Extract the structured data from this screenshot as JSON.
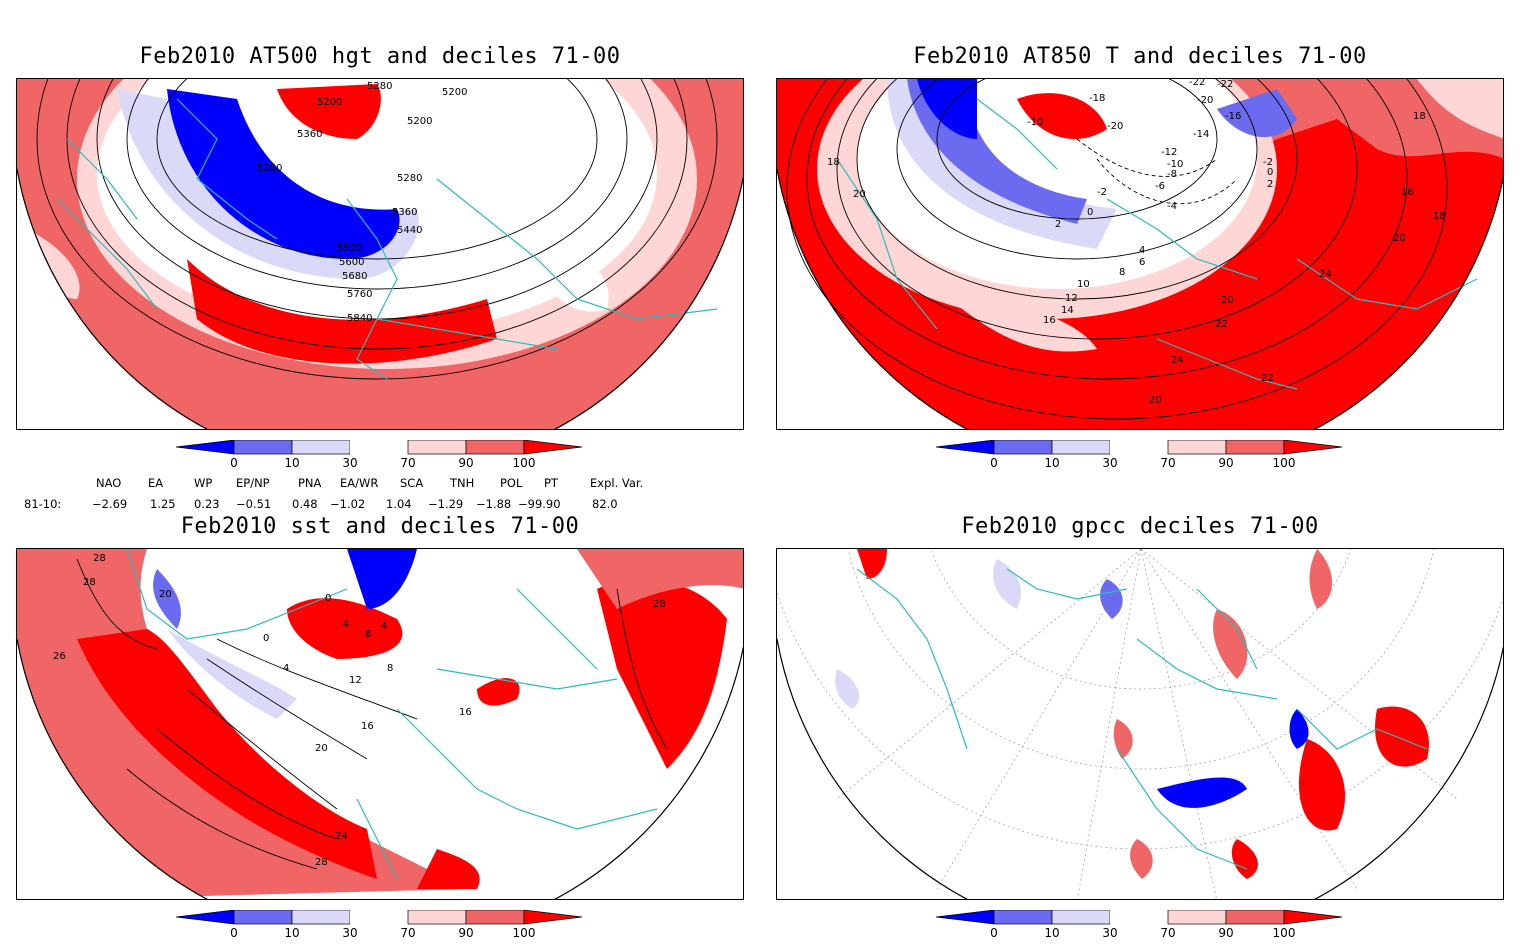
{
  "panels": [
    {
      "title": "Feb2010 AT500 hgt and deciles 71-00",
      "contour_labels": [
        "5200",
        "5280",
        "5200",
        "5200",
        "5280",
        "5360",
        "5280",
        "5360",
        "5440",
        "5520",
        "5600",
        "5680",
        "5760",
        "5840"
      ]
    },
    {
      "title": "Feb2010 AT850 T and deciles 71-00",
      "contour_labels": [
        "-22",
        "-22",
        "-18",
        "-20",
        "-10",
        "-20",
        "-16",
        "-14",
        "-12",
        "-10",
        "-8",
        "-6",
        "-4",
        "-2",
        "-2",
        "0",
        "2",
        "18",
        "20",
        "2",
        "0",
        "4",
        "6",
        "8",
        "10",
        "12",
        "14",
        "16",
        "20",
        "22",
        "24",
        "22",
        "20",
        "24",
        "20",
        "18",
        "16",
        "18"
      ]
    },
    {
      "title": "Feb2010 sst and deciles 71-00",
      "contour_labels": [
        "28",
        "28",
        "26",
        "20",
        "0",
        "4",
        "4",
        "8",
        "0",
        "4",
        "12",
        "8",
        "16",
        "20",
        "24",
        "28",
        "16",
        "28"
      ]
    },
    {
      "title": "Feb2010 gpcc deciles 71-00",
      "contour_labels": []
    }
  ],
  "colorbar": {
    "ticks": [
      "0",
      "10",
      "30",
      "70",
      "90",
      "100"
    ],
    "colors": [
      "#0000ff",
      "#6b6bf0",
      "#dadaf8",
      "#ffffff",
      "#ffd6d6",
      "#f06666",
      "#ff0000"
    ]
  },
  "indices": {
    "headers": [
      "NAO",
      "EA",
      "WP",
      "EP/NP",
      "PNA",
      "EA/WR",
      "SCA",
      "TNH",
      "POL",
      "PT",
      "Expl. Var."
    ],
    "row_label": "81-10:",
    "values": [
      "−2.69",
      "1.25",
      "0.23",
      "−0.51",
      "0.48",
      "−1.02",
      "1.04",
      "−1.29",
      "−1.88",
      "−99.90",
      "82.0"
    ]
  },
  "colors": {
    "land_outline": "#2bbcbc",
    "strong_red": "#ff0000",
    "mid_red": "#f06666",
    "light_red": "#ffd6d6",
    "strong_blue": "#0000ff",
    "mid_blue": "#6b6bf0",
    "light_blue": "#dadaf8"
  }
}
